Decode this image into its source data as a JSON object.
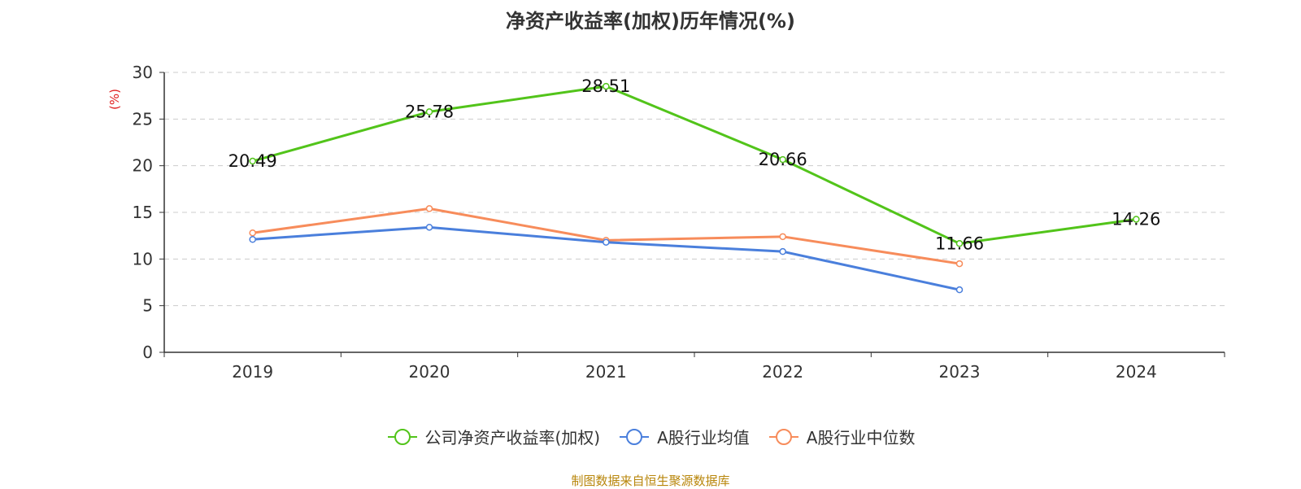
{
  "chart_data": {
    "type": "line",
    "title": "净资产收益率(加权)历年情况(%)",
    "ylabel": "(%)",
    "categories": [
      "2019",
      "2020",
      "2021",
      "2022",
      "2023",
      "2024"
    ],
    "ylim": [
      0,
      30
    ],
    "yticks": [
      0,
      5,
      10,
      15,
      20,
      25,
      30
    ],
    "grid": true,
    "legend_position": "bottom",
    "series": [
      {
        "name": "公司净资产收益率(加权)",
        "color": "#52c41a",
        "show_labels": true,
        "values": [
          20.49,
          25.78,
          28.51,
          20.66,
          11.66,
          14.26
        ],
        "labels": [
          "20.49",
          "25.78",
          "28.51",
          "20.66",
          "11.66",
          "14.26"
        ]
      },
      {
        "name": "A股行业均值",
        "color": "#4a7fdc",
        "show_labels": false,
        "values": [
          12.1,
          13.4,
          11.8,
          10.8,
          6.7,
          null
        ]
      },
      {
        "name": "A股行业中位数",
        "color": "#f78c5b",
        "show_labels": false,
        "values": [
          12.8,
          15.4,
          12.0,
          12.4,
          9.5,
          null
        ]
      }
    ]
  },
  "footer": {
    "source": "制图数据来自恒生聚源数据库"
  }
}
